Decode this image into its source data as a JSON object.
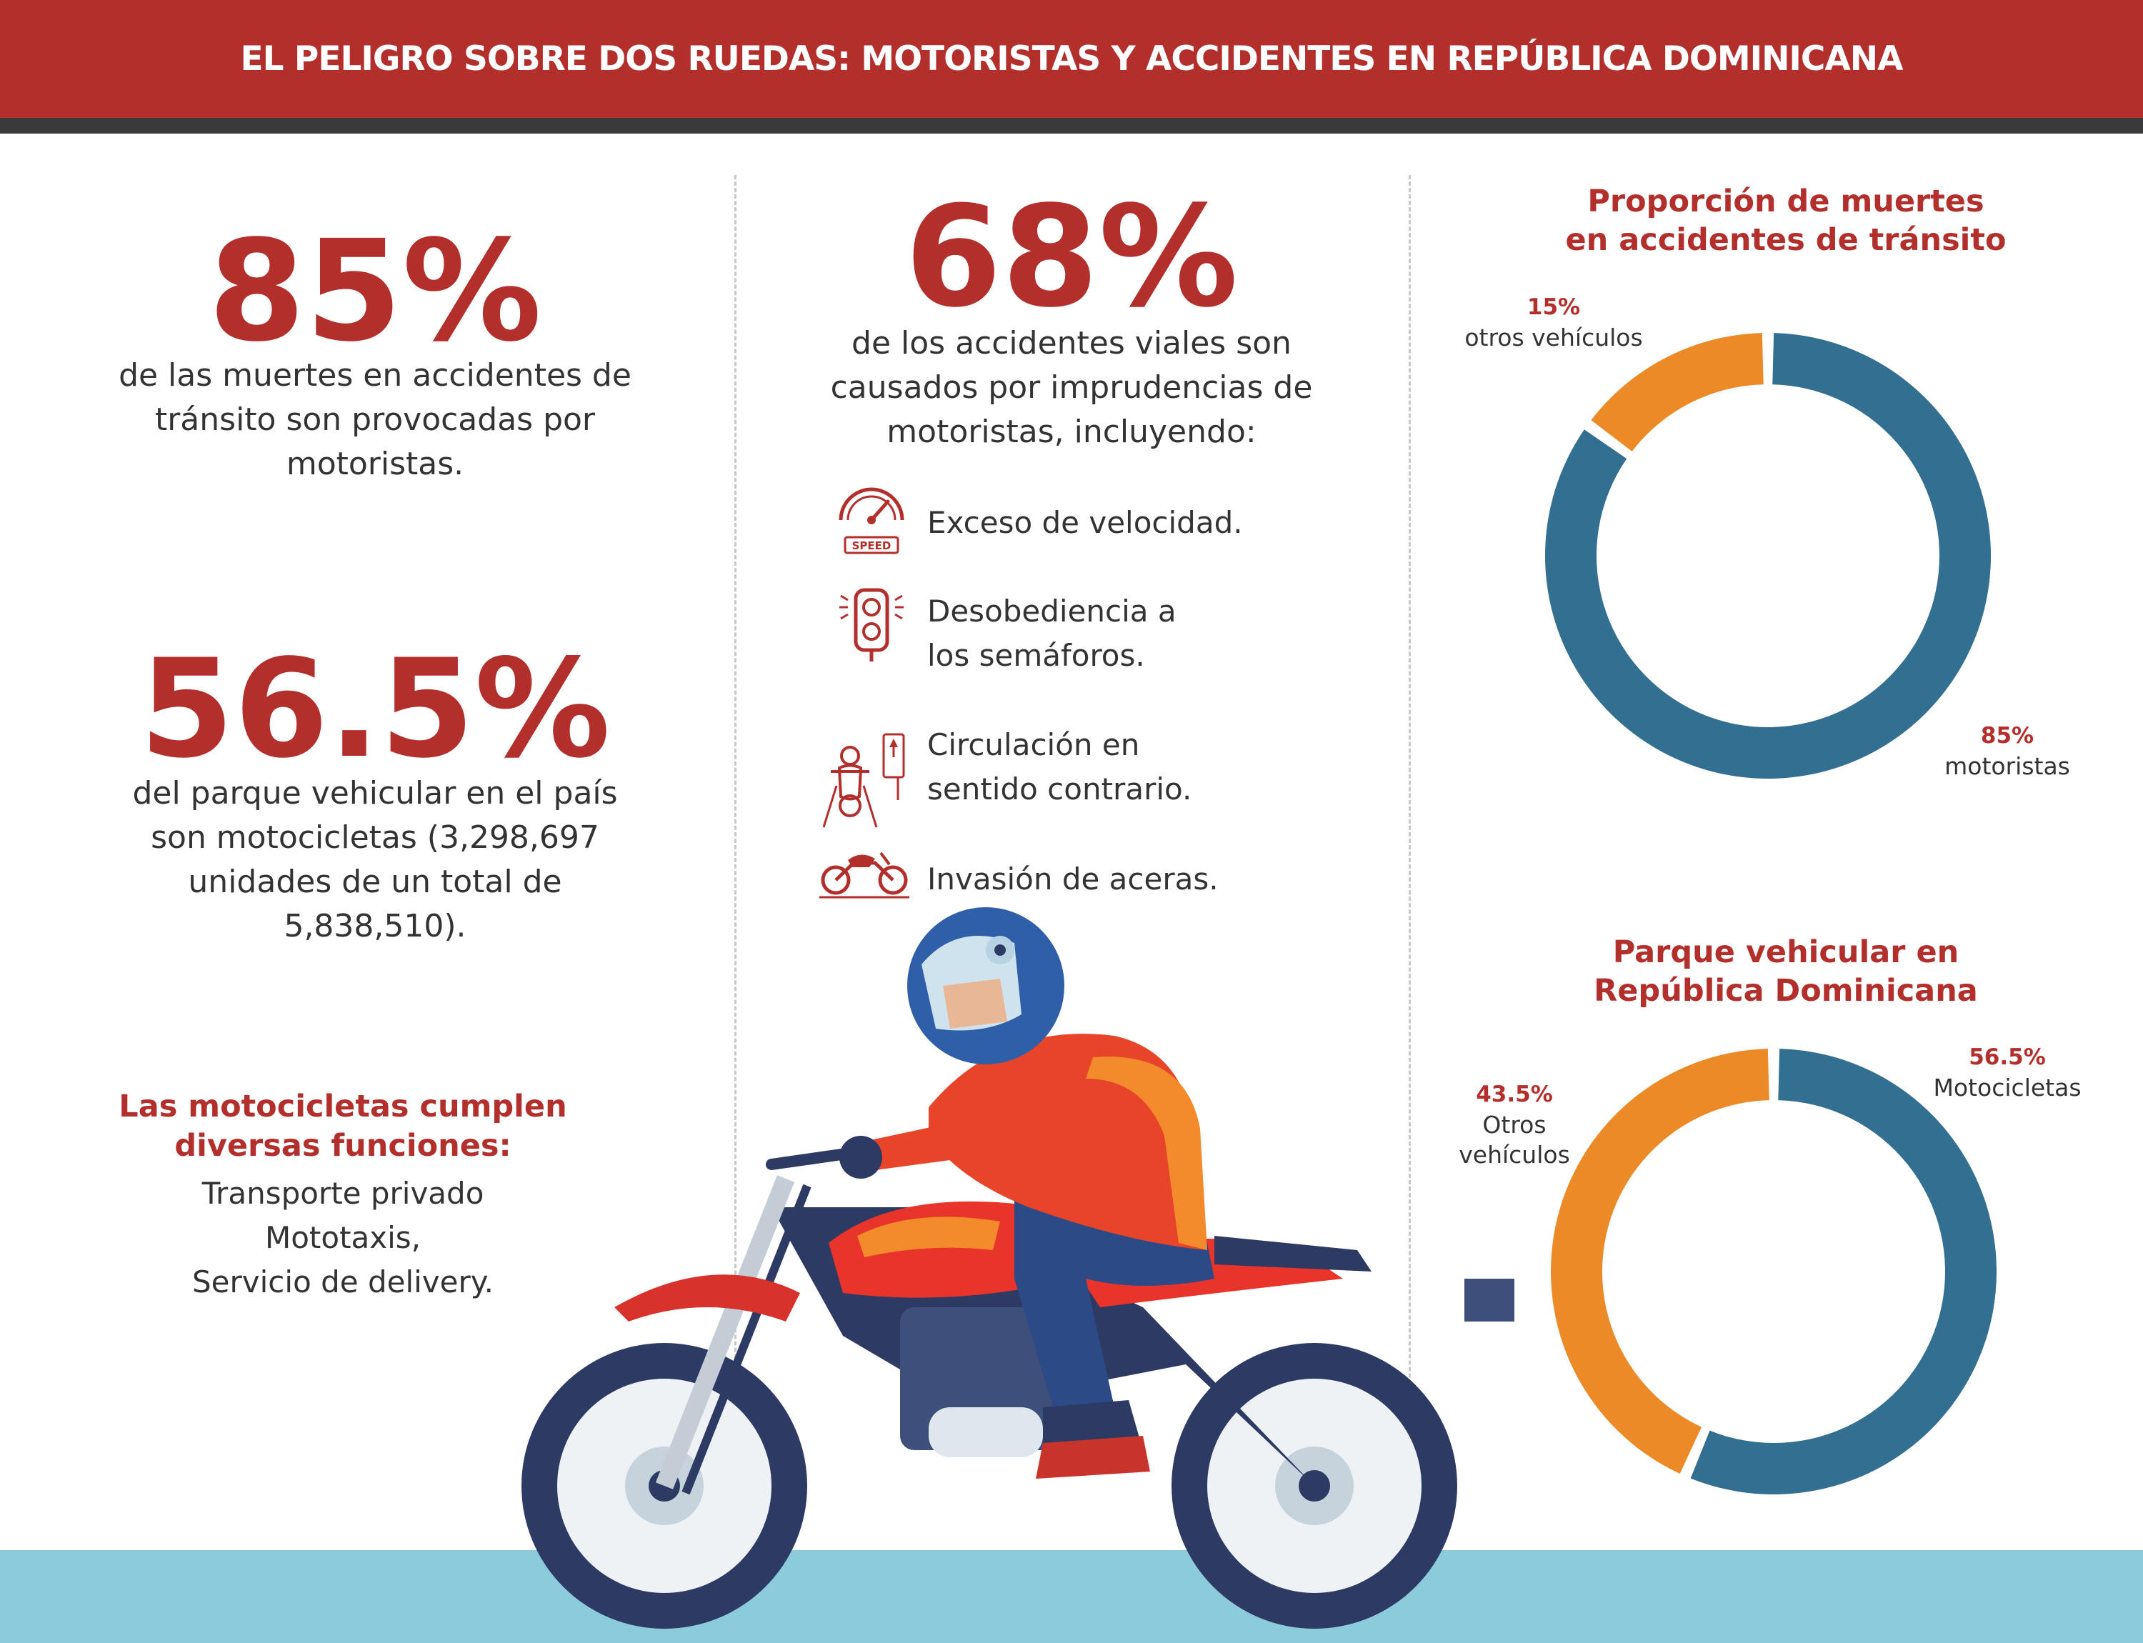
{
  "header": {
    "title": "EL PELIGRO SOBRE DOS RUEDAS: MOTORISTAS Y ACCIDENTES EN REPÚBLICA DOMINICANA"
  },
  "left": {
    "stat1": {
      "value": "85%",
      "lines": [
        "de las muertes en accidentes de",
        "tránsito son provocadas por",
        "motoristas."
      ]
    },
    "stat2": {
      "value": "56.5%",
      "lines": [
        "del parque vehicular en el país",
        "son motocicletas (3,298,697",
        "unidades de un total de",
        "5,838,510)."
      ]
    },
    "functions": {
      "title_lines": [
        "Las motocicletas cumplen",
        "diversas funciones:"
      ],
      "items": [
        "Transporte privado",
        "Mototaxis,",
        "Servicio de delivery."
      ]
    }
  },
  "middle": {
    "stat": {
      "value": "68%",
      "lines": [
        "de los accidentes viales son",
        "causados por imprudencias de",
        "motoristas, incluyendo:"
      ]
    },
    "causes": [
      {
        "icon": "speedometer-icon",
        "lines": [
          "Exceso de velocidad."
        ],
        "icon_text": "SPEED"
      },
      {
        "icon": "traffic-light-icon",
        "lines": [
          "Desobediencia a",
          "los semáforos."
        ]
      },
      {
        "icon": "wrong-way-icon",
        "lines": [
          "Circulación en",
          "sentido contrario."
        ]
      },
      {
        "icon": "motorcycle-icon",
        "lines": [
          "Invasión de aceras."
        ]
      }
    ]
  },
  "colors": {
    "accent_red": "#b32f2c",
    "motorcycle_blue": "#336f91",
    "other_orange": "#ec8a28",
    "ground_blue": "#8ccbdb"
  },
  "chart_data": [
    {
      "type": "pie",
      "variant": "donut",
      "title_lines": [
        "Proporción de muertes",
        "en accidentes de tránsito"
      ],
      "categories": [
        "motoristas",
        "otros vehículos"
      ],
      "values": [
        85,
        15
      ],
      "value_labels": [
        "85%",
        "15%"
      ],
      "colors": [
        "#336f91",
        "#ec8a28"
      ],
      "label_lines": [
        [
          "motoristas"
        ],
        [
          "otros vehículos"
        ]
      ]
    },
    {
      "type": "pie",
      "variant": "donut",
      "title_lines": [
        "Parque vehicular en",
        "República Dominicana"
      ],
      "categories": [
        "Motocicletas",
        "Otros vehículos"
      ],
      "values": [
        56.5,
        43.5
      ],
      "value_labels": [
        "56.5%",
        "43.5%"
      ],
      "colors": [
        "#336f91",
        "#ec8a28"
      ],
      "label_lines": [
        [
          "Motocicletas"
        ],
        [
          "Otros",
          "vehículos"
        ]
      ]
    }
  ]
}
